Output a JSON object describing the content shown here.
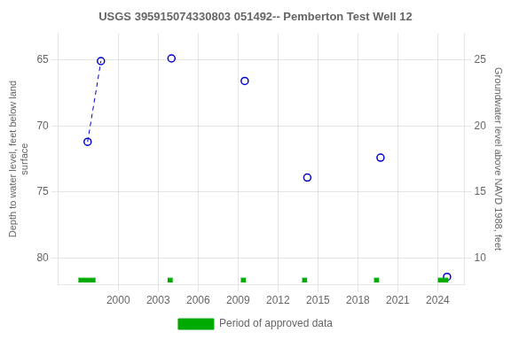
{
  "chart_data": {
    "type": "scatter",
    "title": "USGS 395915074330803 051492-- Pemberton Test Well 12",
    "ylabel": "Depth to water level, feet below land\nsurface",
    "y2label": "Groundwater level above NAVD 1988, feet",
    "xlim": [
      1995.5,
      2026.0
    ],
    "xticks": [
      2000,
      2003,
      2006,
      2009,
      2012,
      2015,
      2018,
      2021,
      2024
    ],
    "ylim": [
      82.0,
      63.0
    ],
    "yticks": [
      65,
      70,
      75,
      80
    ],
    "y2lim": [
      8.0,
      27.0
    ],
    "y2ticks": [
      10,
      15,
      20,
      25
    ],
    "grid": true,
    "legend": "bottom",
    "series": [
      {
        "type": "line",
        "line_style": "dashed",
        "color": "#0000cc",
        "x": [
          1997.7,
          1998.7
        ],
        "values": [
          71.2,
          65.1
        ]
      },
      {
        "type": "scatter",
        "marker": "circle",
        "color": "#0000cc",
        "x": [
          1997.7,
          1998.7,
          2004.0,
          2009.5,
          2014.2,
          2019.7,
          2024.7
        ],
        "values": [
          71.2,
          65.1,
          64.9,
          66.6,
          73.9,
          72.4,
          81.4
        ]
      },
      {
        "name": "Period of approved data",
        "type": "span",
        "color": "#00aa00",
        "x_start": [
          1997.0,
          2003.7,
          2009.2,
          2013.8,
          2019.2,
          2024.0
        ],
        "x_end": [
          1998.3,
          2004.1,
          2009.6,
          2014.2,
          2019.6,
          2024.8
        ],
        "y": 81.65,
        "height": 0.3
      }
    ]
  }
}
